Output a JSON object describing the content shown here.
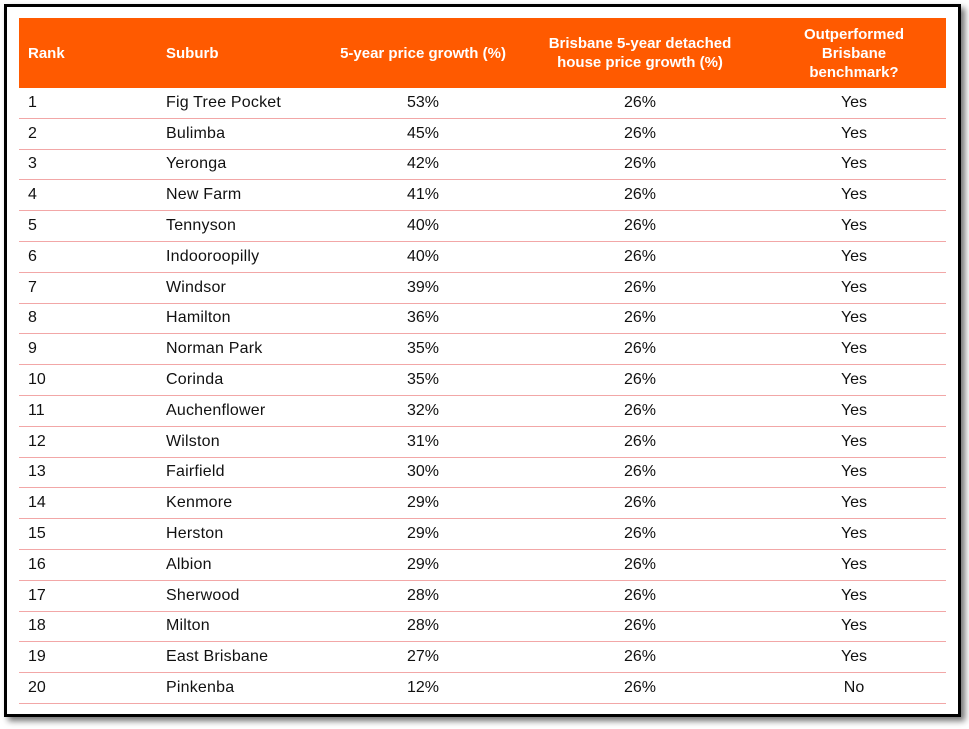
{
  "table": {
    "headers": [
      "Rank",
      "Suburb",
      "5-year price growth (%)",
      "Brisbane 5-year detached house price growth (%)",
      "Outperformed Brisbane benchmark?"
    ],
    "rows": [
      [
        "1",
        "Fig Tree Pocket",
        "53%",
        "26%",
        "Yes"
      ],
      [
        "2",
        "Bulimba",
        "45%",
        "26%",
        "Yes"
      ],
      [
        "3",
        "Yeronga",
        "42%",
        "26%",
        "Yes"
      ],
      [
        "4",
        "New Farm",
        "41%",
        "26%",
        "Yes"
      ],
      [
        "5",
        "Tennyson",
        "40%",
        "26%",
        "Yes"
      ],
      [
        "6",
        "Indooroopilly",
        "40%",
        "26%",
        "Yes"
      ],
      [
        "7",
        "Windsor",
        "39%",
        "26%",
        "Yes"
      ],
      [
        "8",
        "Hamilton",
        "36%",
        "26%",
        "Yes"
      ],
      [
        "9",
        "Norman Park",
        "35%",
        "26%",
        "Yes"
      ],
      [
        "10",
        "Corinda",
        "35%",
        "26%",
        "Yes"
      ],
      [
        "11",
        "Auchenflower",
        "32%",
        "26%",
        "Yes"
      ],
      [
        "12",
        "Wilston",
        "31%",
        "26%",
        "Yes"
      ],
      [
        "13",
        "Fairfield",
        "30%",
        "26%",
        "Yes"
      ],
      [
        "14",
        "Kenmore",
        "29%",
        "26%",
        "Yes"
      ],
      [
        "15",
        "Herston",
        "29%",
        "26%",
        "Yes"
      ],
      [
        "16",
        "Albion",
        "29%",
        "26%",
        "Yes"
      ],
      [
        "17",
        "Sherwood",
        "28%",
        "26%",
        "Yes"
      ],
      [
        "18",
        "Milton",
        "28%",
        "26%",
        "Yes"
      ],
      [
        "19",
        "East Brisbane",
        "27%",
        "26%",
        "Yes"
      ],
      [
        "20",
        "Pinkenba",
        "12%",
        "26%",
        "No"
      ]
    ]
  },
  "colors": {
    "header_bg": "#ff5a00",
    "header_text": "#ffffff",
    "row_divider": "#f2a7a7",
    "frame_border": "#000000"
  }
}
